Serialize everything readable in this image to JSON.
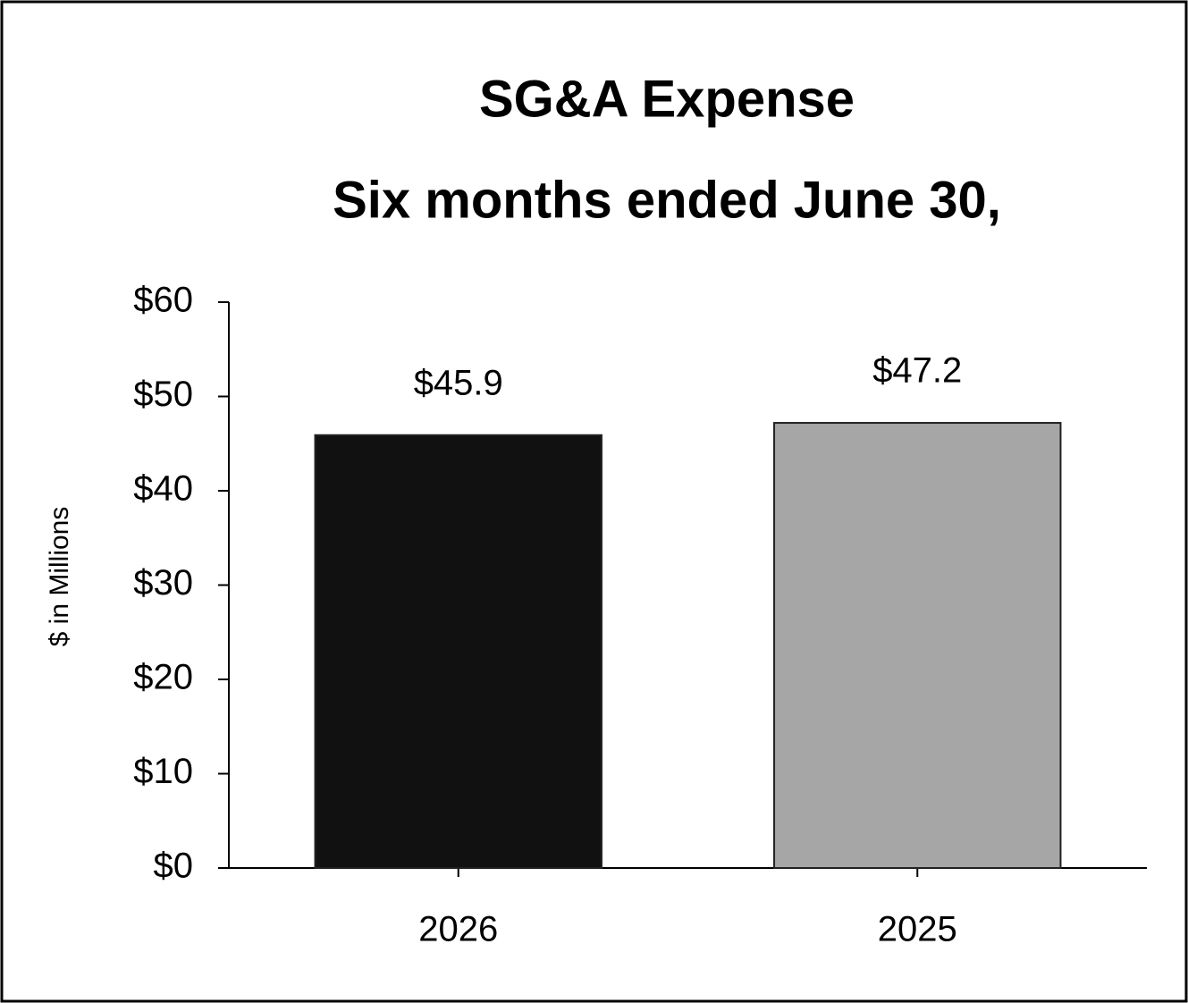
{
  "chart_data": {
    "type": "bar",
    "title": "SG&A Expense",
    "subtitle": "Six months ended June 30,",
    "y_label": "$ in Millions",
    "categories": [
      "2026",
      "2025"
    ],
    "values": [
      45.9,
      47.2
    ],
    "value_labels": [
      "$45.9",
      "$47.2"
    ],
    "colors": [
      "#111111",
      "#a6a6a6"
    ],
    "ylim": [
      0,
      60
    ],
    "yticks": [
      {
        "value": 0,
        "label": "$0"
      },
      {
        "value": 10,
        "label": "$10"
      },
      {
        "value": 20,
        "label": "$20"
      },
      {
        "value": 30,
        "label": "$30"
      },
      {
        "value": 40,
        "label": "$40"
      },
      {
        "value": 50,
        "label": "$50"
      },
      {
        "value": 60,
        "label": "$60"
      }
    ],
    "grid": false
  }
}
